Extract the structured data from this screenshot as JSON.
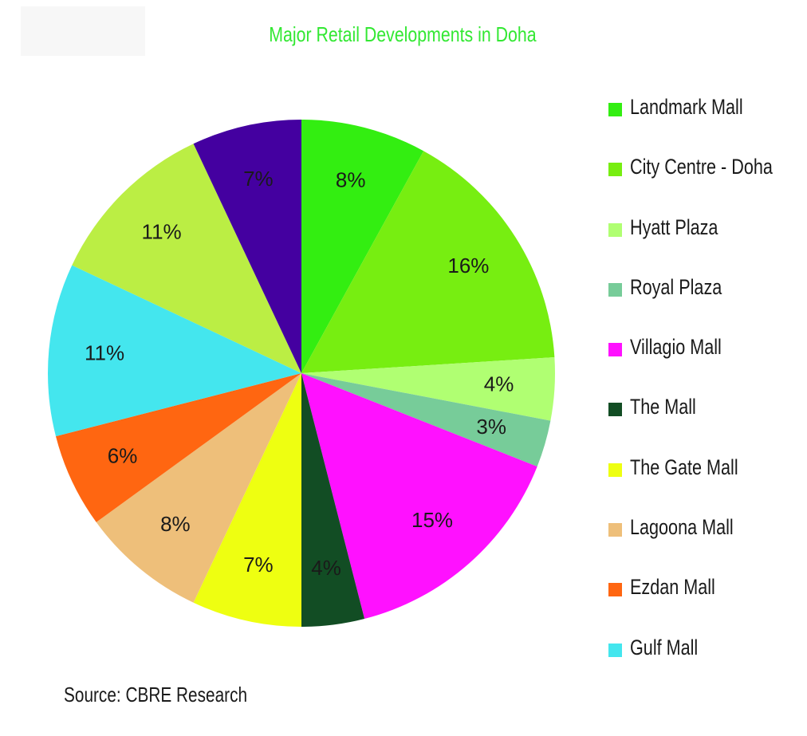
{
  "chart_data": {
    "type": "pie",
    "title": "Major Retail Developments in Doha",
    "title_color": "#33e833",
    "source": "Source: CBRE Research",
    "start_angle_deg": 0,
    "direction": "clockwise",
    "slices": [
      {
        "label": "Landmark Mall",
        "value": 8,
        "value_label": "8%",
        "color": "#33ee11"
      },
      {
        "label": "City Centre - Doha",
        "value": 16,
        "value_label": "16%",
        "color": "#77ee11"
      },
      {
        "label": "Hyatt Plaza",
        "value": 4,
        "value_label": "4%",
        "color": "#b0ff72"
      },
      {
        "label": "Royal Plaza",
        "value": 3,
        "value_label": "3%",
        "color": "#77cc99"
      },
      {
        "label": "Villagio Mall",
        "value": 15,
        "value_label": "15%",
        "color": "#ff11ff"
      },
      {
        "label": "The Mall",
        "value": 4,
        "value_label": "4%",
        "color": "#124d24"
      },
      {
        "label": "The Gate Mall",
        "value": 7,
        "value_label": "7%",
        "color": "#eeff11"
      },
      {
        "label": "Lagoona Mall",
        "value": 8,
        "value_label": "8%",
        "color": "#eebf7a"
      },
      {
        "label": "Ezdan Mall",
        "value": 6,
        "value_label": "6%",
        "color": "#ff6611"
      },
      {
        "label": "Gulf Mall",
        "value": 11,
        "value_label": "11%",
        "color": "#44e6ee"
      },
      {
        "label": "",
        "value": 11,
        "value_label": "11%",
        "color": "#bbee44"
      },
      {
        "label": "",
        "value": 7,
        "value_label": "7%",
        "color": "#4400a0"
      }
    ],
    "legend": [
      "Landmark Mall",
      "City Centre - Doha",
      "Hyatt Plaza",
      "Royal Plaza",
      "Villagio Mall",
      "The Mall",
      "The Gate Mall",
      "Lagoona Mall",
      "Ezdan Mall",
      "Gulf Mall"
    ],
    "legend_position": "right"
  }
}
